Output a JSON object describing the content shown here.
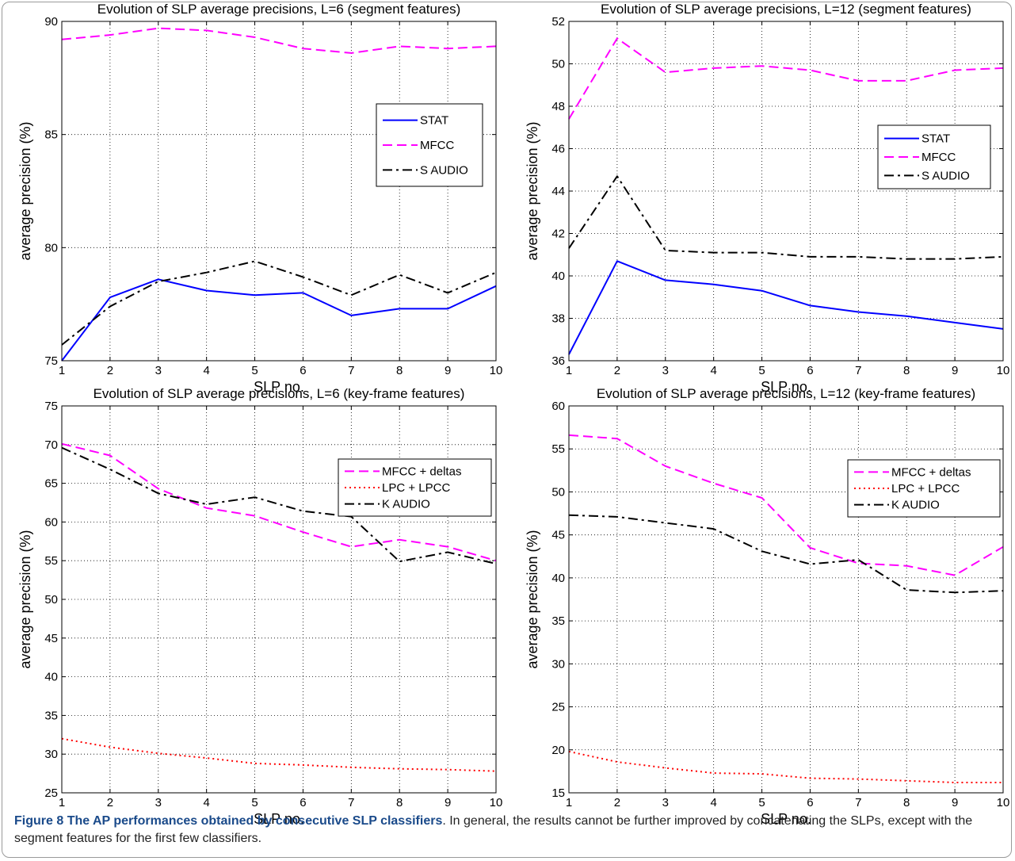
{
  "chart_data": [
    {
      "type": "line",
      "title": "Evolution of SLP average precisions, L=6 (segment features)",
      "xlabel": "SLP no.",
      "ylabel": "average precision (%)",
      "xlim": [
        1,
        10
      ],
      "ylim": [
        75,
        90
      ],
      "xticks": [
        1,
        2,
        3,
        4,
        5,
        6,
        7,
        8,
        9,
        10
      ],
      "yticks": [
        75,
        80,
        85,
        90
      ],
      "grid": true,
      "legend_position": "right",
      "x": [
        1,
        2,
        3,
        4,
        5,
        6,
        7,
        8,
        9,
        10
      ],
      "series": [
        {
          "name": "STAT",
          "style": "solid",
          "color": "#0000ff",
          "values": [
            75.0,
            77.8,
            78.6,
            78.1,
            77.9,
            78.0,
            77.0,
            77.3,
            77.3,
            78.3
          ]
        },
        {
          "name": "MFCC",
          "style": "dashed",
          "color": "#ff00ff",
          "values": [
            89.2,
            89.4,
            89.7,
            89.6,
            89.3,
            88.8,
            88.6,
            88.9,
            88.8,
            88.9
          ]
        },
        {
          "name": "S AUDIO",
          "style": "dashdot",
          "color": "#000000",
          "values": [
            75.7,
            77.4,
            78.5,
            78.9,
            79.4,
            78.7,
            77.9,
            78.8,
            78.0,
            78.9
          ]
        }
      ]
    },
    {
      "type": "line",
      "title": "Evolution of SLP average precisions, L=12 (segment features)",
      "xlabel": "SLP no.",
      "ylabel": "average precision (%)",
      "xlim": [
        1,
        10
      ],
      "ylim": [
        36,
        52
      ],
      "xticks": [
        1,
        2,
        3,
        4,
        5,
        6,
        7,
        8,
        9,
        10
      ],
      "yticks": [
        36,
        38,
        40,
        42,
        44,
        46,
        48,
        50,
        52
      ],
      "grid": true,
      "legend_position": "right",
      "x": [
        1,
        2,
        3,
        4,
        5,
        6,
        7,
        8,
        9,
        10
      ],
      "series": [
        {
          "name": "STAT",
          "style": "solid",
          "color": "#0000ff",
          "values": [
            36.3,
            40.7,
            39.8,
            39.6,
            39.3,
            38.6,
            38.3,
            38.1,
            37.8,
            37.5
          ]
        },
        {
          "name": "MFCC",
          "style": "dashed",
          "color": "#ff00ff",
          "values": [
            47.4,
            51.2,
            49.6,
            49.8,
            49.9,
            49.7,
            49.2,
            49.2,
            49.7,
            49.8
          ]
        },
        {
          "name": "S AUDIO",
          "style": "dashdot",
          "color": "#000000",
          "values": [
            41.3,
            44.7,
            41.2,
            41.1,
            41.1,
            40.9,
            40.9,
            40.8,
            40.8,
            40.9
          ]
        }
      ]
    },
    {
      "type": "line",
      "title": "Evolution of SLP average precisions, L=6 (key-frame features)",
      "xlabel": "SLP no.",
      "ylabel": "average precision (%)",
      "xlim": [
        1,
        10
      ],
      "ylim": [
        25,
        75
      ],
      "xticks": [
        1,
        2,
        3,
        4,
        5,
        6,
        7,
        8,
        9,
        10
      ],
      "yticks": [
        25,
        30,
        35,
        40,
        45,
        50,
        55,
        60,
        65,
        70,
        75
      ],
      "grid": true,
      "legend_position": "top-right",
      "x": [
        1,
        2,
        3,
        4,
        5,
        6,
        7,
        8,
        9,
        10
      ],
      "series": [
        {
          "name": "MFCC + deltas",
          "style": "dashed",
          "color": "#ff00ff",
          "values": [
            70.1,
            68.6,
            64.3,
            61.8,
            60.8,
            58.7,
            56.8,
            57.7,
            56.8,
            55.0
          ]
        },
        {
          "name": "LPC + LPCC",
          "style": "dotted",
          "color": "#ff0000",
          "values": [
            32.0,
            30.9,
            30.1,
            29.5,
            28.8,
            28.6,
            28.3,
            28.1,
            28.0,
            27.8
          ]
        },
        {
          "name": "K AUDIO",
          "style": "dashdot",
          "color": "#000000",
          "values": [
            69.6,
            66.8,
            63.7,
            62.3,
            63.2,
            61.4,
            60.7,
            54.9,
            56.1,
            54.6
          ]
        }
      ]
    },
    {
      "type": "line",
      "title": "Evolution of SLP average precisions, L=12 (key-frame features)",
      "xlabel": "SLP no.",
      "ylabel": "average precision (%)",
      "xlim": [
        1,
        10
      ],
      "ylim": [
        15,
        60
      ],
      "xticks": [
        1,
        2,
        3,
        4,
        5,
        6,
        7,
        8,
        9,
        10
      ],
      "yticks": [
        15,
        20,
        25,
        30,
        35,
        40,
        45,
        50,
        55,
        60
      ],
      "grid": true,
      "legend_position": "top-right",
      "x": [
        1,
        2,
        3,
        4,
        5,
        6,
        7,
        8,
        9,
        10
      ],
      "series": [
        {
          "name": "MFCC + deltas",
          "style": "dashed",
          "color": "#ff00ff",
          "values": [
            56.6,
            56.2,
            53.0,
            51.0,
            49.3,
            43.5,
            41.7,
            41.4,
            40.3,
            43.6
          ]
        },
        {
          "name": "LPC + LPCC",
          "style": "dotted",
          "color": "#ff0000",
          "values": [
            19.8,
            18.6,
            17.9,
            17.3,
            17.2,
            16.7,
            16.6,
            16.4,
            16.2,
            16.2
          ]
        },
        {
          "name": "K AUDIO",
          "style": "dashdot",
          "color": "#000000",
          "values": [
            47.3,
            47.1,
            46.4,
            45.7,
            43.1,
            41.6,
            42.1,
            38.6,
            38.3,
            38.5
          ]
        }
      ]
    }
  ],
  "caption": {
    "label": "Figure 8",
    "title": "The AP performances obtained by consecutive SLP classifiers",
    "text": ". In general, the results cannot be further improved by concatenating the SLPs, except with the segment features for the first few classifiers."
  }
}
